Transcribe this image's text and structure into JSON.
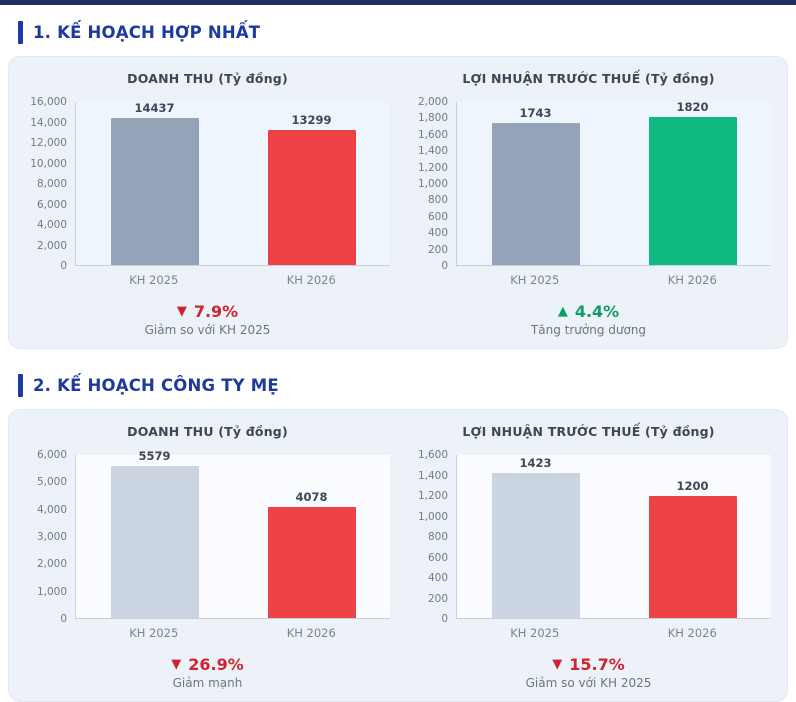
{
  "page": {
    "sections": [
      {
        "title": "1. KẾ HOẠCH HỢP NHẤT"
      },
      {
        "title": "2. KẾ HOẠCH CÔNG TY MẸ"
      }
    ]
  },
  "colors": {
    "top_bar": "#212d5e",
    "section_heading": "#1d3a9e",
    "panel_background": "#edf2f9",
    "gray_bar": "#94a3b8",
    "light_gray_bar": "#cbd5e1",
    "red_bar": "#ee4145",
    "green_bar": "#10b981",
    "negative_text": "#cf2430",
    "positive_text": "#0f9d66"
  },
  "chart_data": [
    {
      "type": "bar",
      "title": "DOANH THU (Tỷ đồng)",
      "categories": [
        "KH 2025",
        "KH 2026"
      ],
      "values": [
        14437,
        13299
      ],
      "bar_colors": [
        "#94a3b8",
        "#ee4145"
      ],
      "ylim": [
        0,
        16000
      ],
      "ytick_step": 2000,
      "plot_bg": "#eff5fd",
      "grid": false,
      "change": {
        "arrow": "▼",
        "percent": "7.9%",
        "note": "Giảm so với KH 2025",
        "color": "#cf2430"
      }
    },
    {
      "type": "bar",
      "title": "LỢI NHUẬN TRƯỚC THUẾ (Tỷ đồng)",
      "categories": [
        "KH 2025",
        "KH 2026"
      ],
      "values": [
        1743,
        1820
      ],
      "bar_colors": [
        "#94a3b8",
        "#10b981"
      ],
      "ylim": [
        0,
        2000
      ],
      "ytick_step": 200,
      "plot_bg": "#eff5fd",
      "grid": false,
      "change": {
        "arrow": "▲",
        "percent": "4.4%",
        "note": "Tăng trưởng dương",
        "color": "#0f9d66"
      }
    },
    {
      "type": "bar",
      "title": "DOANH THU (Tỷ đồng)",
      "categories": [
        "KH 2025",
        "KH 2026"
      ],
      "values": [
        5579,
        4078
      ],
      "bar_colors": [
        "#cbd5e1",
        "#ee4145"
      ],
      "ylim": [
        0,
        6000
      ],
      "ytick_step": 1000,
      "plot_bg": "#fbfcff",
      "grid": false,
      "change": {
        "arrow": "▼",
        "percent": "26.9%",
        "note": "Giảm mạnh",
        "color": "#cf2430"
      }
    },
    {
      "type": "bar",
      "title": "LỢI NHUẬN TRƯỚC THUẾ (Tỷ đồng)",
      "categories": [
        "KH 2025",
        "KH 2026"
      ],
      "values": [
        1423,
        1200
      ],
      "bar_colors": [
        "#cbd5e1",
        "#ee4145"
      ],
      "ylim": [
        0,
        1600
      ],
      "ytick_step": 200,
      "plot_bg": "#fbfcff",
      "grid": false,
      "change": {
        "arrow": "▼",
        "percent": "15.7%",
        "note": "Giảm so với KH 2025",
        "color": "#cf2430"
      }
    }
  ]
}
